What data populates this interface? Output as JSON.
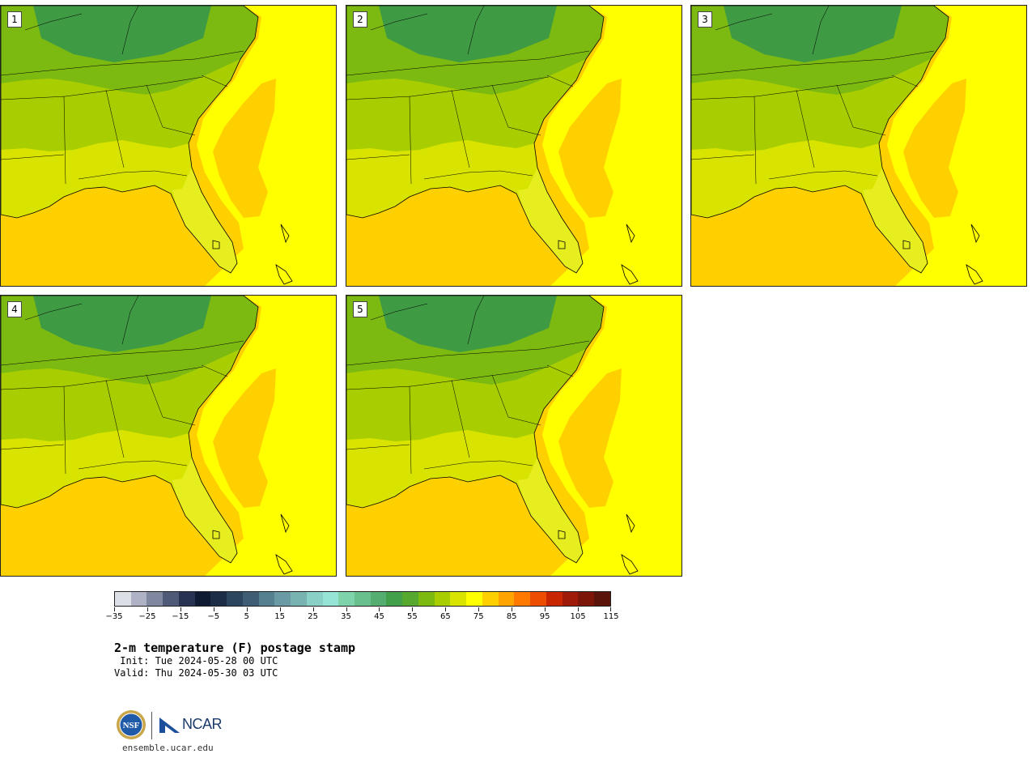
{
  "figure": {
    "title": "2-m temperature (F) postage stamp",
    "init_line": " Init: Tue 2024-05-28 00 UTC",
    "valid_line": "Valid: Thu 2024-05-30 03 UTC",
    "url": "ensemble.ucar.edu",
    "logo_text": "NCAR"
  },
  "panels": [
    {
      "label": "1"
    },
    {
      "label": "2"
    },
    {
      "label": "3"
    },
    {
      "label": "4"
    },
    {
      "label": "5"
    }
  ],
  "colorbar": {
    "units": "F",
    "colors": [
      "#dcdfe6",
      "#aeb2c4",
      "#8088a0",
      "#4e5a78",
      "#283252",
      "#0f1a33",
      "#1c2d48",
      "#2d4660",
      "#3f5e76",
      "#55808f",
      "#6a9aa3",
      "#78b3b1",
      "#8ad0c6",
      "#96e4d6",
      "#7fd3aa",
      "#6ac08c",
      "#55ad6f",
      "#42a04a",
      "#56a82e",
      "#7cba12",
      "#a8cd00",
      "#d8e400",
      "#ffff00",
      "#ffd000",
      "#ffa400",
      "#ff7800",
      "#ec4d00",
      "#c82600",
      "#a01a0a",
      "#7c1608",
      "#5a140a"
    ],
    "tick_labels": [
      "−35",
      "−25",
      "−15",
      "−5",
      "5",
      "15",
      "25",
      "35",
      "45",
      "55",
      "65",
      "75",
      "85",
      "95",
      "105",
      "115"
    ]
  },
  "colors": {
    "gulf": "#ffd000",
    "atlantic": "#ffff00",
    "warm_ocean": "#ffd000",
    "cold_land": "#3f9a44",
    "mid_land": "#7cba12",
    "warm_land": "#a8cd00",
    "hot_land": "#d8e400",
    "florida": "#e6ee20",
    "border": "#000000"
  }
}
